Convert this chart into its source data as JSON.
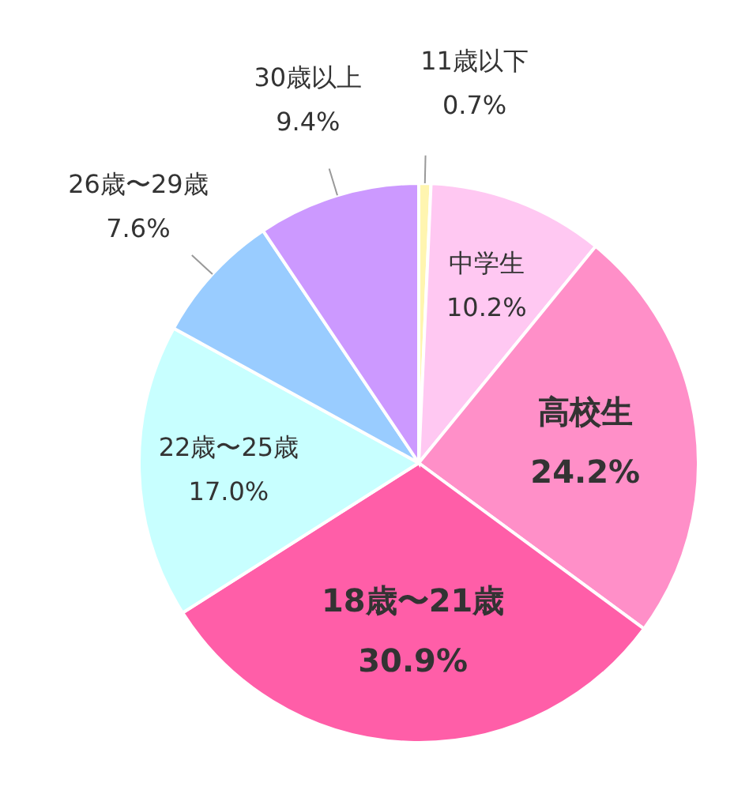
{
  "chart_data": {
    "type": "pie",
    "categories": [
      "11歳以下",
      "中学生",
      "高校生",
      "18歳〜21歳",
      "22歳〜25歳",
      "26歳〜29歳",
      "30歳以上"
    ],
    "values": [
      0.7,
      10.2,
      24.2,
      30.9,
      17.0,
      7.6,
      9.4
    ],
    "value_labels": [
      "0.7%",
      "10.2%",
      "24.2%",
      "30.9%",
      "17.0%",
      "7.6%",
      "9.4%"
    ],
    "colors": [
      "#fff5b0",
      "#ffc8f2",
      "#ff8fc8",
      "#ff5ea8",
      "#c8ffff",
      "#99ccff",
      "#cc99ff"
    ]
  }
}
